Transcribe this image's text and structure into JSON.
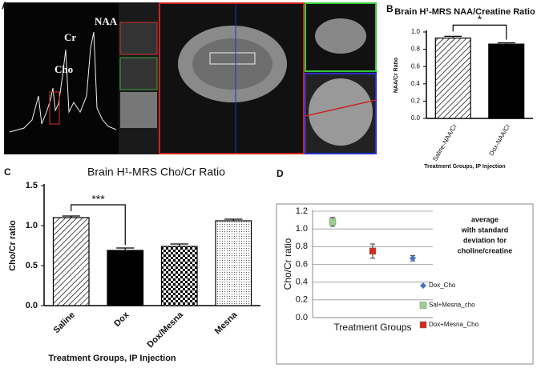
{
  "panel_a": {
    "label": "A",
    "peaks": [
      "NAA",
      "Cr",
      "Cho"
    ]
  },
  "chart_data": [
    {
      "type": "bar",
      "panel_label": "B",
      "title": "Brain H¹-MRS NAA/Creatine Ratio",
      "categories": [
        "Saline-NAA/Cr",
        "Dox-NAA/Cr"
      ],
      "values": [
        0.93,
        0.86
      ],
      "errors": [
        0.02,
        0.015
      ],
      "patterns": [
        "hatch",
        "solid"
      ],
      "color": "#000000",
      "ylim": [
        0,
        1.0
      ],
      "yticks": [
        {
          "value": 0,
          "label": "0.0"
        },
        0.2,
        0.4,
        0.6,
        0.8,
        {
          "value": 1.0,
          "label": "1.0"
        }
      ],
      "y_label": "NAA/Cr Ratio",
      "x_label": "Treatment Groups, IP Injection",
      "significance": "*"
    },
    {
      "type": "bar",
      "panel_label": "C",
      "title": "Brain H¹-MRS Cho/Cr Ratio",
      "categories": [
        "Saline",
        "Dox",
        "Dox/Mesna",
        "Mesna"
      ],
      "values": [
        1.1,
        0.69,
        0.74,
        1.06
      ],
      "errors": [
        0.02,
        0.03,
        0.03,
        0.02
      ],
      "patterns": [
        "hatch",
        "solid",
        "checker",
        "dots"
      ],
      "color": "#000000",
      "ylim": [
        0,
        1.5
      ],
      "yticks": [
        {
          "value": 0,
          "label": "0.0"
        },
        0.5,
        {
          "value": 1.0,
          "label": "1.0"
        },
        1.5
      ],
      "y_label": "Cho/Cr ratio",
      "x_label": "Treatment Groups, IP Injection",
      "significance": "***"
    },
    {
      "type": "scatter",
      "panel_label": "D",
      "categories": [
        null,
        null,
        null
      ],
      "series": [
        {
          "name": "Dox_Cho",
          "color": "#4472c4",
          "marker": "diamond",
          "values": [
            null,
            null,
            0.67
          ],
          "errors": [
            null,
            null,
            0.03
          ]
        },
        {
          "name": "Sal+Mesna_cho",
          "color": "#9bcf8f",
          "marker": "square",
          "values": [
            1.08,
            null,
            null
          ],
          "errors": [
            0.05,
            null,
            null
          ]
        },
        {
          "name": "Dox+Mesna_Cho",
          "color": "#d42a1a",
          "marker": "square",
          "values": [
            null,
            0.75,
            null
          ],
          "errors": [
            null,
            0.08,
            null
          ]
        }
      ],
      "ylim": [
        0,
        1.2
      ],
      "yticks": [
        {
          "value": 0,
          "label": "0.0"
        },
        0.2,
        0.4,
        0.6,
        0.8,
        {
          "value": 1.0,
          "label": "1.0"
        },
        1.2
      ],
      "grid": true,
      "y_label": "Cho/Cr ratio",
      "x_label": "Treatment Groups",
      "annotation": [
        "average",
        "with standard",
        "deviation for",
        "choline/creatine"
      ]
    }
  ]
}
